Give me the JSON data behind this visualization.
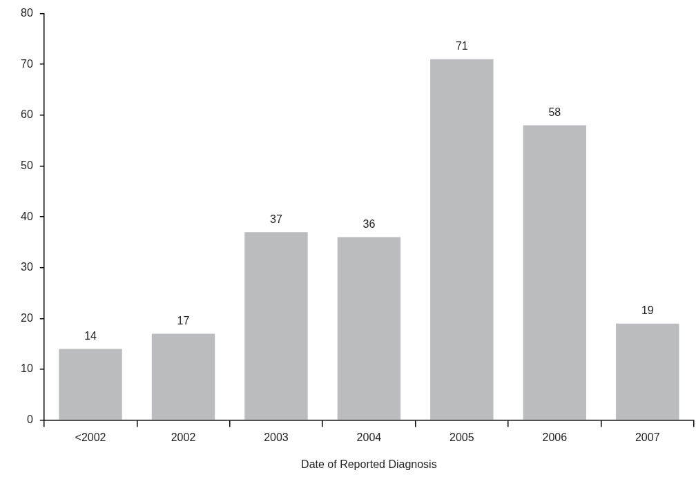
{
  "chart_data": {
    "type": "bar",
    "xlabel": "Date of Reported Diagnosis",
    "categories": [
      "<2002",
      "2002",
      "2003",
      "2004",
      "2005",
      "2006",
      "2007"
    ],
    "values": [
      14,
      17,
      37,
      36,
      71,
      58,
      19
    ],
    "color": "#bbbcc0",
    "ylim": [
      0,
      80
    ],
    "yticks": [
      0,
      10,
      20,
      30,
      40,
      50,
      60,
      70,
      80
    ],
    "grid": false,
    "legend": false,
    "data_labels": true
  }
}
